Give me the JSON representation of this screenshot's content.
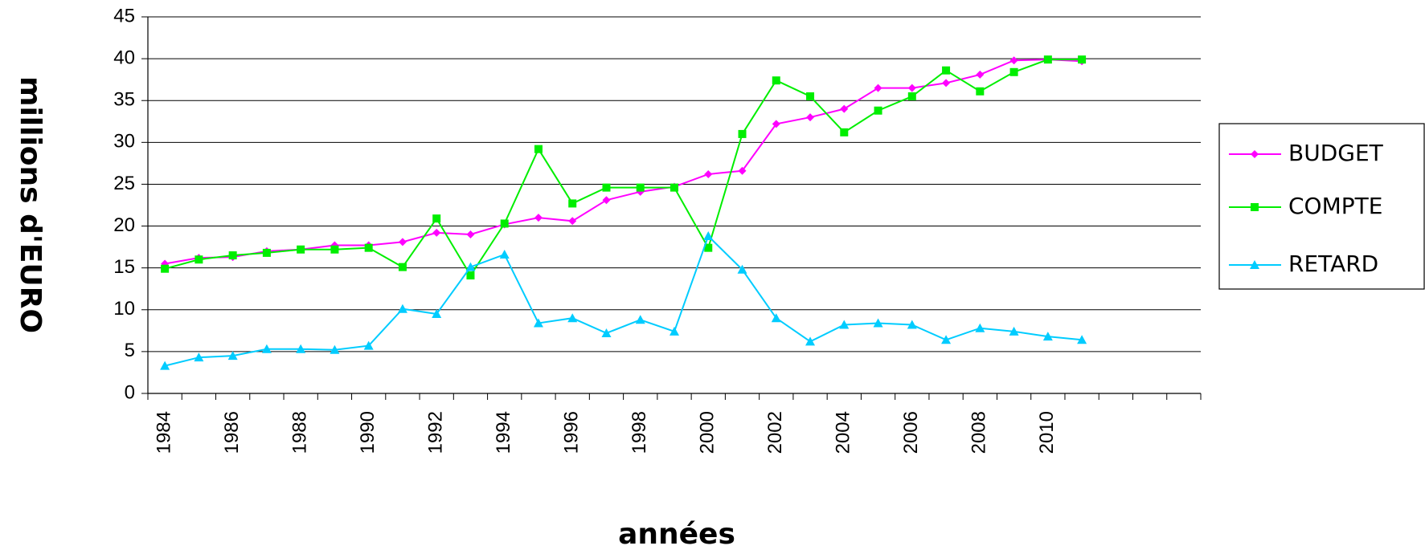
{
  "chart_data": {
    "type": "line",
    "ylabel": "millions d'EURO",
    "xlabel": "années",
    "categories": [
      "1984",
      null,
      "1986",
      null,
      "1988",
      null,
      "1990",
      null,
      "1992",
      null,
      "1994",
      null,
      "1996",
      null,
      "1998",
      null,
      "2000",
      null,
      "2002",
      null,
      "2004",
      null,
      "2006",
      null,
      "2008",
      null,
      "2010",
      null,
      null,
      null,
      null
    ],
    "series": [
      {
        "name": "BUDGET",
        "color": "#ff00ff",
        "marker": "diamond",
        "values": [
          15.5,
          16.2,
          16.3,
          17.0,
          17.2,
          17.7,
          17.7,
          18.1,
          19.2,
          19.0,
          20.2,
          21.0,
          20.6,
          23.1,
          24.1,
          24.7,
          26.2,
          26.6,
          32.2,
          33.0,
          34.0,
          36.5,
          36.5,
          37.1,
          38.1,
          39.8,
          39.9,
          39.7,
          null,
          null,
          null
        ]
      },
      {
        "name": "COMPTE",
        "color": "#00ee00",
        "marker": "square",
        "values": [
          14.9,
          16.0,
          16.5,
          16.8,
          17.2,
          17.2,
          17.4,
          15.1,
          20.9,
          14.1,
          20.3,
          29.2,
          22.7,
          24.6,
          24.6,
          24.6,
          17.4,
          31.0,
          37.4,
          35.5,
          31.2,
          33.8,
          35.5,
          38.6,
          36.1,
          38.4,
          39.9,
          39.9,
          null,
          null,
          null
        ]
      },
      {
        "name": "RETARD",
        "color": "#00ccff",
        "marker": "triangle",
        "values": [
          3.3,
          4.3,
          4.5,
          5.3,
          5.3,
          5.2,
          5.7,
          10.1,
          9.5,
          15.1,
          16.6,
          8.4,
          9.0,
          7.2,
          8.8,
          7.4,
          18.8,
          14.8,
          9.0,
          6.2,
          8.2,
          8.4,
          8.2,
          6.4,
          7.8,
          7.4,
          6.8,
          6.4,
          null,
          null,
          null
        ]
      }
    ],
    "ylim": [
      0,
      45
    ],
    "yticks": [
      0,
      5,
      10,
      15,
      20,
      25,
      30,
      35,
      40,
      45
    ],
    "grid": true,
    "legend": "right"
  }
}
